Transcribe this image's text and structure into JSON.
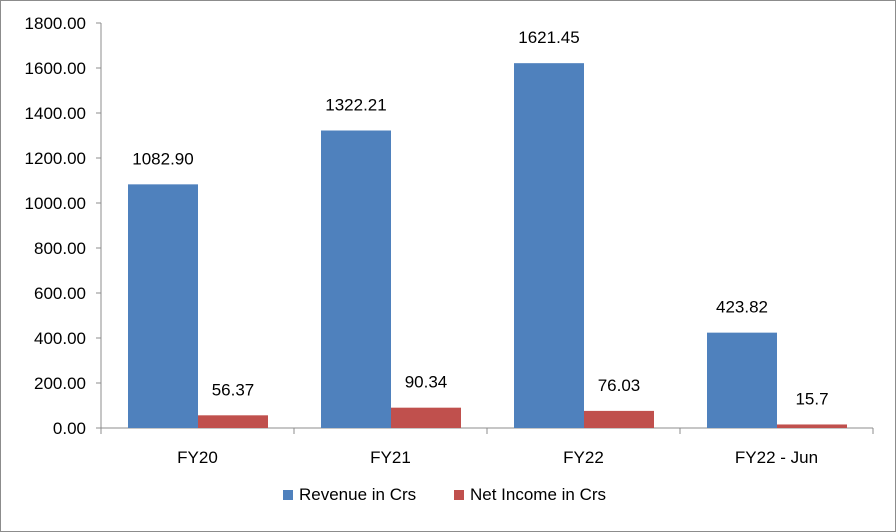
{
  "chart_data": {
    "type": "bar",
    "title": "",
    "xlabel": "",
    "ylabel": "",
    "categories": [
      "FY20",
      "FY21",
      "FY22",
      "FY22 - Jun"
    ],
    "series": [
      {
        "name": "Revenue in Crs",
        "color": "#4f81bd",
        "values": [
          1082.9,
          1322.21,
          1621.45,
          423.82
        ],
        "labels": [
          "1082.90",
          "1322.21",
          "1621.45",
          "423.82"
        ]
      },
      {
        "name": "Net Income in Crs",
        "color": "#c0504d",
        "values": [
          56.37,
          90.34,
          76.03,
          15.7
        ],
        "labels": [
          "56.37",
          "90.34",
          "76.03",
          "15.7"
        ]
      }
    ],
    "ylim": [
      0,
      1800
    ],
    "yticks": [
      0,
      200,
      400,
      600,
      800,
      1000,
      1200,
      1400,
      1600,
      1800
    ],
    "ytick_labels": [
      "0.00",
      "200.00",
      "400.00",
      "600.00",
      "800.00",
      "1000.00",
      "1200.00",
      "1400.00",
      "1600.00",
      "1800.00"
    ],
    "grid": false,
    "legend_position": "bottom"
  }
}
